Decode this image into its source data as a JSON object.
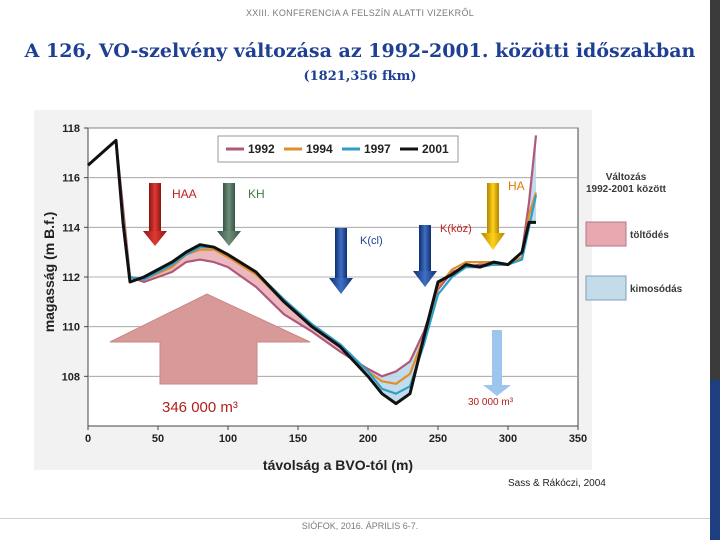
{
  "header": "XXIII. KONFERENCIA A FELSZÍN ALATTI VIZEKRŐL",
  "title": "A 126, VO-szelvény változása az 1992-2001. közötti időszakban",
  "subtitle": "(1821,356 fkm)",
  "credit": "Sass & Rákóczi, 2004",
  "footer": "SIÓFOK, 2016. ÁPRILIS 6-7.",
  "chart_data": {
    "type": "line",
    "xlabel": "távolság a BVO-tól (m)",
    "ylabel": "magasság (m B.f.)",
    "xlim": [
      0,
      350
    ],
    "ylim": [
      106,
      118
    ],
    "xticks": [
      "0",
      "50",
      "100",
      "150",
      "200",
      "250",
      "300",
      "350"
    ],
    "yticks": [
      "108",
      "110",
      "112",
      "114",
      "116",
      "118"
    ],
    "series": [
      {
        "name": "1992",
        "color": "#b0587a",
        "x": [
          0,
          20,
          25,
          30,
          40,
          60,
          70,
          80,
          90,
          100,
          120,
          140,
          160,
          180,
          200,
          210,
          220,
          230,
          240,
          250,
          260,
          270,
          280,
          290,
          300,
          310,
          315,
          320
        ],
        "y": [
          116.5,
          117.5,
          114.8,
          112,
          111.8,
          112.2,
          112.6,
          112.7,
          112.6,
          112.4,
          111.6,
          110.5,
          109.8,
          109,
          108.3,
          108,
          108.2,
          108.6,
          109.8,
          111.5,
          112.2,
          112.4,
          112.5,
          112.5,
          112.5,
          113,
          115,
          117.7
        ]
      },
      {
        "name": "1994",
        "color": "#e08e2a",
        "x": [
          0,
          20,
          25,
          30,
          40,
          60,
          70,
          80,
          90,
          100,
          120,
          140,
          160,
          180,
          200,
          210,
          220,
          230,
          240,
          250,
          260,
          270,
          280,
          290,
          300,
          310,
          315,
          320
        ],
        "y": [
          116.5,
          117.5,
          114.5,
          112,
          111.9,
          112.4,
          112.9,
          113.1,
          113.1,
          112.8,
          112.1,
          111,
          110,
          109.2,
          108.2,
          107.8,
          107.7,
          108.1,
          109.6,
          111.6,
          112.3,
          112.6,
          112.6,
          112.6,
          112.5,
          112.8,
          114.5,
          115.4
        ]
      },
      {
        "name": "1997",
        "color": "#2f9fc8",
        "x": [
          0,
          20,
          25,
          30,
          40,
          60,
          70,
          80,
          90,
          100,
          120,
          140,
          160,
          180,
          200,
          210,
          220,
          230,
          240,
          250,
          260,
          270,
          280,
          290,
          300,
          310,
          315,
          320
        ],
        "y": [
          116.5,
          117.5,
          114.3,
          112,
          111.9,
          112.5,
          112.9,
          113.2,
          113.2,
          112.9,
          112.2,
          111.1,
          110.1,
          109.3,
          108.2,
          107.5,
          107.3,
          107.6,
          109.3,
          111.3,
          112,
          112.4,
          112.4,
          112.5,
          112.5,
          112.7,
          114,
          115.3
        ]
      },
      {
        "name": "2001",
        "color": "#111111",
        "x": [
          0,
          20,
          25,
          30,
          40,
          60,
          70,
          80,
          90,
          100,
          120,
          140,
          160,
          180,
          200,
          210,
          220,
          230,
          240,
          250,
          260,
          270,
          280,
          290,
          300,
          310,
          315,
          320
        ],
        "y": [
          116.5,
          117.5,
          114.2,
          111.8,
          112,
          112.6,
          113,
          113.3,
          113.2,
          112.9,
          112.2,
          111,
          110,
          109.2,
          108,
          107.3,
          106.9,
          107.3,
          109.6,
          111.8,
          112.1,
          112.5,
          112.4,
          112.6,
          112.5,
          113,
          114.2,
          114.2
        ]
      }
    ],
    "annotations": {
      "side_title_1": "Változás",
      "side_title_2": "1992-2001 között",
      "fill_label": "töltődés",
      "scour_label": "kimosódás",
      "arrows": [
        {
          "label": "HAA",
          "x": 48,
          "color": "#c0201e"
        },
        {
          "label": "KH",
          "x": 100,
          "color": "#3d7f3a"
        },
        {
          "label": "K(cl)",
          "x": 180,
          "color": "#1e3f93"
        },
        {
          "label": "K(köz)",
          "x": 240,
          "color": "#1e3f93"
        },
        {
          "label": "HA",
          "x": 290,
          "color": "#d9a800"
        }
      ],
      "volume_fill": "346 000 m³",
      "volume_scour": "30 000 m³"
    }
  }
}
